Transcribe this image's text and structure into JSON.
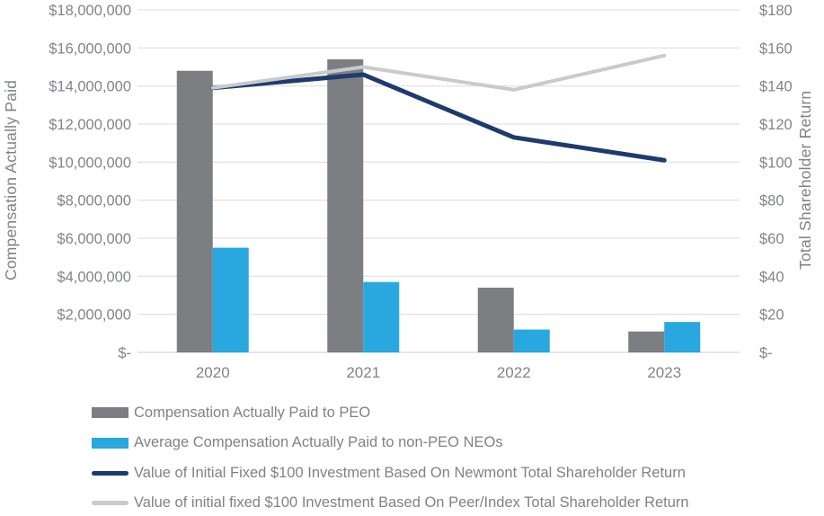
{
  "axes": {
    "left_title": "Compensation Actually Paid",
    "right_title": "Total Shareholder Return",
    "left_ticks": [
      "$-",
      "$2,000,000",
      "$4,000,000",
      "$6,000,000",
      "$8,000,000",
      "$10,000,000",
      "$12,000,000",
      "$14,000,000",
      "$16,000,000",
      "$18,000,000"
    ],
    "right_ticks": [
      "$-",
      "$20",
      "$40",
      "$60",
      "$80",
      "$100",
      "$120",
      "$140",
      "$160",
      "$180"
    ]
  },
  "chart_data": {
    "type": "bar",
    "subtype": "combo-bar-line-dual-axis",
    "title": "",
    "categories": [
      "2020",
      "2021",
      "2022",
      "2023"
    ],
    "series": [
      {
        "name": "Compensation Actually Paid to PEO",
        "type": "bar",
        "axis": "left",
        "color": "#7d7e81",
        "values": [
          14800000,
          15400000,
          3400000,
          1100000
        ]
      },
      {
        "name": "Average Compensation Actually Paid to non-PEO NEOs",
        "type": "bar",
        "axis": "left",
        "color": "#29a8e0",
        "values": [
          5500000,
          3700000,
          1200000,
          1600000
        ]
      },
      {
        "name": "Value of Initial Fixed $100 Investment Based On Newmont Total Shareholder Return",
        "type": "line",
        "axis": "right",
        "color": "#1f3a6e",
        "values": [
          139,
          146,
          113,
          101
        ]
      },
      {
        "name": "Value of initial fixed $100 Investment Based On Peer/Index Total Shareholder Return",
        "type": "line",
        "axis": "right",
        "color": "#c9cacc",
        "values": [
          139,
          150,
          138,
          156
        ]
      }
    ],
    "xlabel": "",
    "ylabel_left": "Compensation Actually Paid",
    "ylabel_right": "Total Shareholder Return",
    "ylim_left": [
      0,
      18000000
    ],
    "ylim_right": [
      0,
      180
    ],
    "grid": true,
    "gridline_color": "#e4e4e6",
    "baseline_color": "#d5d6d8",
    "legend_position": "bottom-left"
  }
}
